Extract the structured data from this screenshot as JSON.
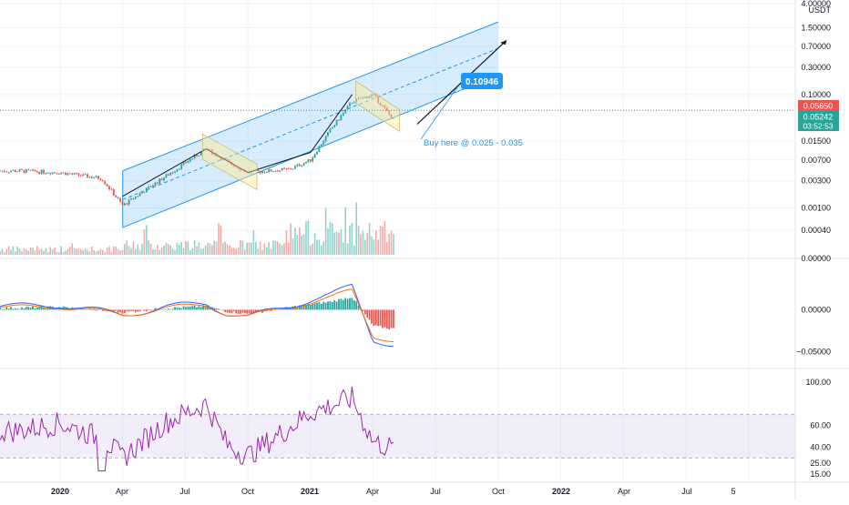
{
  "price_axis": {
    "unit": "USDT",
    "ticks": [
      {
        "label": "4.00000",
        "value": 4.0
      },
      {
        "label": "1.50000",
        "value": 1.5
      },
      {
        "label": "0.70000",
        "value": 0.7
      },
      {
        "label": "0.30000",
        "value": 0.3
      },
      {
        "label": "0.10000",
        "value": 0.1
      },
      {
        "label": "0.01500",
        "value": 0.015
      },
      {
        "label": "0.00700",
        "value": 0.007
      },
      {
        "label": "0.00300",
        "value": 0.003
      },
      {
        "label": "0.00100",
        "value": 0.001
      },
      {
        "label": "0.00040",
        "value": 0.0004
      }
    ],
    "top_label": "0.00000",
    "scale": "log"
  },
  "price_badges": {
    "last_price": "0.05650",
    "current_price": "0.05242",
    "countdown": "03:52:53",
    "colors": {
      "red": "#ef5350",
      "green": "#26a69a"
    }
  },
  "annotations": {
    "target_label": "0.10946",
    "buy_note": "Buy here @ 0.025 - 0.035"
  },
  "macd_axis": {
    "ticks": [
      {
        "label": "0.00000",
        "value": 0.0
      },
      {
        "label": "−0.05000",
        "value": -0.05
      }
    ]
  },
  "rsi_axis": {
    "ticks": [
      {
        "label": "100.00",
        "value": 100
      },
      {
        "label": "60.00",
        "value": 60
      },
      {
        "label": "40.00",
        "value": 40
      },
      {
        "label": "25.00",
        "value": 25
      },
      {
        "label": "15.00",
        "value": 15
      }
    ]
  },
  "time_axis": {
    "labels": [
      "2020",
      "Apr",
      "Jul",
      "Oct",
      "2021",
      "Apr",
      "Jul",
      "Oct",
      "2022",
      "Apr",
      "Jul",
      "5"
    ]
  },
  "chart_data": [
    {
      "type": "line",
      "panel": "price",
      "scale": "log",
      "x": [
        "2019-11",
        "2020-01",
        "2020-03",
        "2020-04",
        "2020-06",
        "2020-08",
        "2020-09",
        "2020-10",
        "2020-12",
        "2021-01",
        "2021-02",
        "2021-03",
        "2021-04",
        "2021-05"
      ],
      "series": [
        {
          "values": [
            0.0045,
            0.0042,
            0.0033,
            0.0011,
            0.0035,
            0.011,
            0.0065,
            0.0042,
            0.0048,
            0.007,
            0.025,
            0.075,
            0.1,
            0.035
          ]
        }
      ],
      "channel": {
        "start": "2020-04",
        "end": "2021-10"
      },
      "projection_target": 0.10946,
      "buy_zone": [
        0.025,
        0.035
      ],
      "ylim": [
        0.0002,
        4.0
      ],
      "colors": {
        "up": "#26a69a",
        "down": "#ef5350",
        "channel": "#2196f3"
      }
    },
    {
      "type": "bar",
      "panel": "macd",
      "series": [
        {
          "name": "",
          "values": [
            0.004,
            0.006,
            -0.002,
            -0.006,
            0.003,
            0.008,
            -0.004,
            -0.009,
            0.005,
            0.012,
            0.018,
            0.028,
            -0.035,
            -0.042
          ]
        }
      ],
      "x": [
        "2019-11",
        "2020-01",
        "2020-03",
        "2020-04",
        "2020-06",
        "2020-08",
        "2020-09",
        "2020-10",
        "2020-12",
        "2021-01",
        "2021-02",
        "2021-03",
        "2021-04",
        "2021-05"
      ],
      "ylim": [
        -0.065,
        0.055
      ]
    },
    {
      "type": "line",
      "panel": "rsi",
      "series": [
        {
          "values": [
            55,
            62,
            48,
            30,
            62,
            80,
            42,
            32,
            58,
            72,
            78,
            85,
            45,
            38
          ]
        }
      ],
      "x": [
        "2019-11",
        "2020-01",
        "2020-03",
        "2020-04",
        "2020-06",
        "2020-08",
        "2020-09",
        "2020-10",
        "2020-12",
        "2021-01",
        "2021-02",
        "2021-03",
        "2021-04",
        "2021-05"
      ],
      "band": [
        30,
        70
      ],
      "ylim": [
        10,
        110
      ]
    }
  ]
}
